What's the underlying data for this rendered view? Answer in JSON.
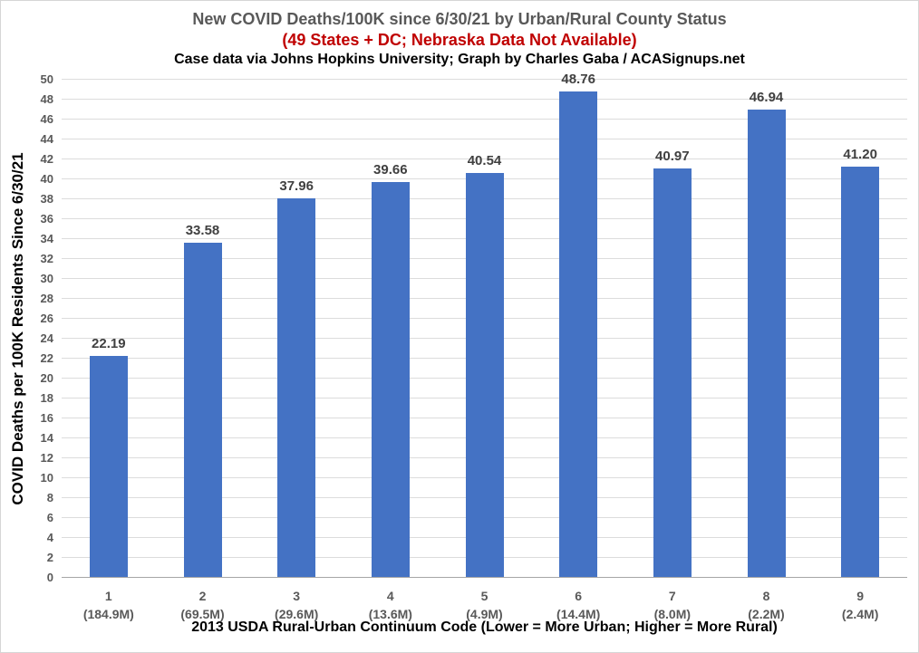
{
  "page": {
    "background_color": "#ffffff",
    "border_color": "#d6d6d6"
  },
  "header": {
    "title": "New COVID Deaths/100K since 6/30/21 by Urban/Rural County Status",
    "title_color": "#595959",
    "note": "(49 States + DC; Nebraska Data Not Available)",
    "note_color": "#c00000",
    "credit": "Case data via Johns Hopkins University; Graph by Charles Gaba / ACASignups.net",
    "credit_color": "#000000"
  },
  "chart_data": {
    "type": "bar",
    "title": "New COVID Deaths/100K since 6/30/21 by Urban/Rural County Status",
    "subtitle": "(49 States + DC; Nebraska Data Not Available)",
    "credit": "Case data via Johns Hopkins University; Graph by Charles Gaba / ACASignups.net",
    "categories": [
      "1",
      "2",
      "3",
      "4",
      "5",
      "6",
      "7",
      "8",
      "9"
    ],
    "category_sublabels": [
      "(184.9M)",
      "(69.5M)",
      "(29.6M)",
      "(13.6M)",
      "(4.9M)",
      "(14.4M)",
      "(8.0M)",
      "(2.2M)",
      "(2.4M)"
    ],
    "values": [
      22.19,
      33.58,
      37.96,
      39.66,
      40.54,
      48.76,
      40.97,
      46.94,
      41.2
    ],
    "data_labels": [
      "22.19",
      "33.58",
      "37.96",
      "39.66",
      "40.54",
      "48.76",
      "40.97",
      "46.94",
      "41.20"
    ],
    "xlabel": "2013 USDA Rural-Urban Continuum Code (Lower = More Urban; Higher = More Rural)",
    "ylabel": "COVID Deaths per 100K Residents Since 6/30/21",
    "ylim": [
      0,
      50
    ],
    "ytick_step": 2,
    "grid": true,
    "legend": false,
    "bar_color": "#4472c4",
    "gridline_color": "#dcdcdc",
    "axis_line_color": "#a6a6a6",
    "tick_label_color": "#595959",
    "category_label_color": "#595959",
    "data_label_color": "#404040"
  }
}
